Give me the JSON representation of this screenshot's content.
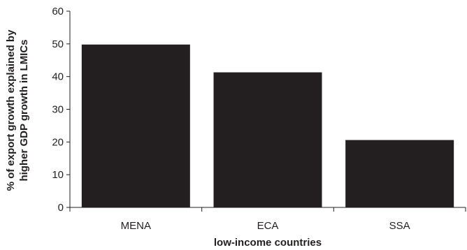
{
  "chart_data": {
    "type": "bar",
    "categories": [
      "MENA",
      "ECA",
      "SSA"
    ],
    "values": [
      49.8,
      41.3,
      20.6
    ],
    "title": "",
    "xlabel": "low-income countries",
    "ylabel_lines": [
      "% of export growth explained by",
      "higher GDP growth in LMICs"
    ],
    "ylim": [
      0,
      60
    ],
    "yticks": [
      0,
      10,
      20,
      30,
      40,
      50,
      60
    ],
    "grid": false,
    "legend": "none",
    "bar_color": "#231f20",
    "axis_color": "#231f20"
  }
}
